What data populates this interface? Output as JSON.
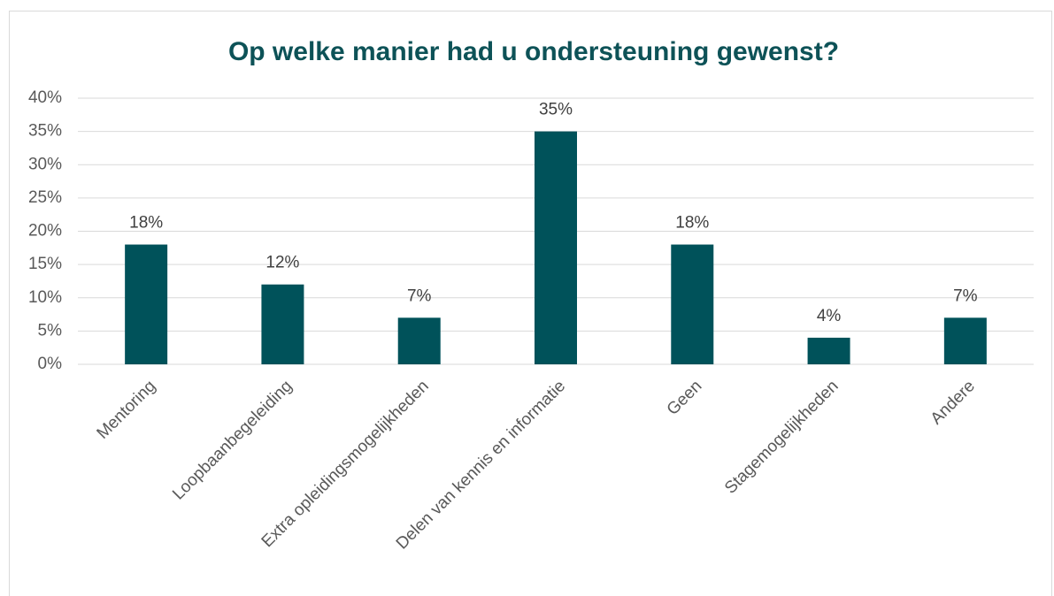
{
  "chart_data": {
    "type": "bar",
    "title": "Op welke manier had u ondersteuning gewenst?",
    "categories": [
      "Mentoring",
      "Loopbaanbegeleiding",
      "Extra opleidingsmogelijkheden",
      "Delen van kennis en informatie",
      "Geen",
      "Stagemogelijkheden",
      "Andere"
    ],
    "values": [
      18,
      12,
      7,
      35,
      18,
      4,
      7
    ],
    "value_labels": [
      "18%",
      "12%",
      "7%",
      "35%",
      "18%",
      "4%",
      "7%"
    ],
    "color": "#00525a",
    "ylim": [
      0,
      40
    ],
    "yticks": [
      {
        "value": 0,
        "label": "0%"
      },
      {
        "value": 5,
        "label": "5%"
      },
      {
        "value": 10,
        "label": "10%"
      },
      {
        "value": 15,
        "label": "15%"
      },
      {
        "value": 20,
        "label": "20%"
      },
      {
        "value": 25,
        "label": "25%"
      },
      {
        "value": 30,
        "label": "30%"
      },
      {
        "value": 35,
        "label": "35%"
      },
      {
        "value": 40,
        "label": "40%"
      }
    ],
    "grid": true
  }
}
